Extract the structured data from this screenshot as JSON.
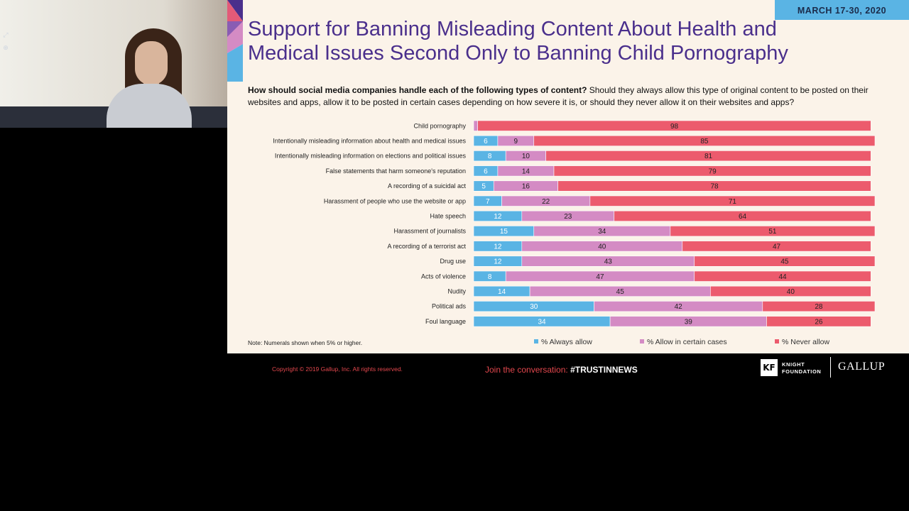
{
  "colors": {
    "always": "#5ab4e4",
    "certain": "#d48bc4",
    "never": "#ec5b6d",
    "title": "#4a2f8c",
    "slide_bg": "#fbf3e9",
    "footer_red": "#e2474d"
  },
  "webcam": {
    "controls": [
      "expand-icon",
      "pin-icon"
    ]
  },
  "slide": {
    "date": "MARCH 17-30, 2020",
    "title": "Support for Banning Misleading Content About Health and Medical Issues Second Only to Banning Child Pornography",
    "question_bold": "How should social media companies handle each of the following types of content?",
    "question_rest": " Should they always allow this type of original content to be posted on their websites and apps, allow it to be posted in certain cases depending on how severe it is, or should they never allow it on their websites and apps?",
    "note": "Note: Numerals shown when 5% or higher."
  },
  "chart_data": {
    "type": "bar",
    "orientation": "horizontal",
    "stacked": true,
    "categories": [
      "Child pornography",
      "Intentionally misleading information about health and medical issues",
      "Intentionally misleading information on elections and political issues",
      "False statements that harm someone's reputation",
      "A recording of a suicidal act",
      "Harassment of people who use the website or app",
      "Hate speech",
      "Harassment of journalists",
      "A recording of a terrorist act",
      "Drug use",
      "Acts of violence",
      "Nudity",
      "Political ads",
      "Foul language"
    ],
    "series": [
      {
        "name": "% Always allow",
        "values": [
          0,
          6,
          8,
          6,
          5,
          7,
          12,
          15,
          12,
          12,
          8,
          14,
          30,
          34
        ]
      },
      {
        "name": "% Allow in certain cases",
        "values": [
          1,
          9,
          10,
          14,
          16,
          22,
          23,
          34,
          40,
          43,
          47,
          45,
          42,
          39
        ]
      },
      {
        "name": "% Never allow",
        "values": [
          98,
          85,
          81,
          79,
          78,
          71,
          64,
          51,
          47,
          45,
          44,
          40,
          28,
          26
        ]
      }
    ],
    "xlim": [
      0,
      100
    ],
    "legend": "bottom"
  },
  "footer": {
    "copyright": "Copyright © 2019 Gallup, Inc. All rights reserved.",
    "join_prefix": "Join the conversation: ",
    "hashtag": "#TRUSTINNEWS",
    "kf_mark": "KF",
    "kf_line1": "KNIGHT",
    "kf_line2": "FOUNDATION",
    "gallup": "GALLUP"
  }
}
